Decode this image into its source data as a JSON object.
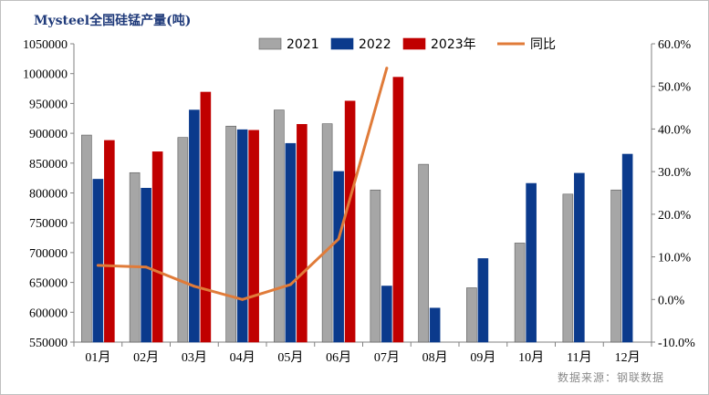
{
  "title": "Mysteel全国硅锰产量(吨)",
  "source": "数据来源：钢联数据",
  "colors": {
    "s2021": "#a6a6a6",
    "s2022": "#0b3a8c",
    "s2023": "#c00000",
    "yoy": "#e07b39",
    "axis": "#808080"
  },
  "chart_data": {
    "type": "bar",
    "title": "Mysteel全国硅锰产量(吨)",
    "categories": [
      "01月",
      "02月",
      "03月",
      "04月",
      "05月",
      "06月",
      "07月",
      "08月",
      "09月",
      "10月",
      "11月",
      "12月"
    ],
    "series": [
      {
        "name": "2021",
        "values": [
          897000,
          834000,
          893000,
          912000,
          939000,
          916000,
          805000,
          848000,
          641000,
          716000,
          798000,
          805000
        ]
      },
      {
        "name": "2022",
        "values": [
          823000,
          808000,
          939000,
          906000,
          883000,
          836000,
          644000,
          607000,
          690000,
          816000,
          833000,
          865000
        ]
      },
      {
        "name": "2023年",
        "values": [
          888000,
          869000,
          969000,
          905000,
          915000,
          954000,
          994000,
          null,
          null,
          null,
          null,
          null
        ]
      }
    ],
    "line_series": {
      "name": "同比",
      "axis": "right",
      "values": [
        8.0,
        7.6,
        3.1,
        0.0,
        3.5,
        14.2,
        54.3,
        null,
        null,
        null,
        null,
        null
      ]
    },
    "left_axis": {
      "min": 550000,
      "max": 1050000,
      "ticks": [
        "550000",
        "600000",
        "650000",
        "700000",
        "750000",
        "800000",
        "850000",
        "900000",
        "950000",
        "1000000",
        "1050000"
      ]
    },
    "right_axis": {
      "min": -10,
      "max": 60,
      "ticks": [
        "-10.0%",
        "0.0%",
        "10.0%",
        "20.0%",
        "30.0%",
        "40.0%",
        "50.0%",
        "60.0%"
      ]
    },
    "legend": [
      "2021",
      "2022",
      "2023年",
      "同比"
    ],
    "legend_position": "top"
  }
}
